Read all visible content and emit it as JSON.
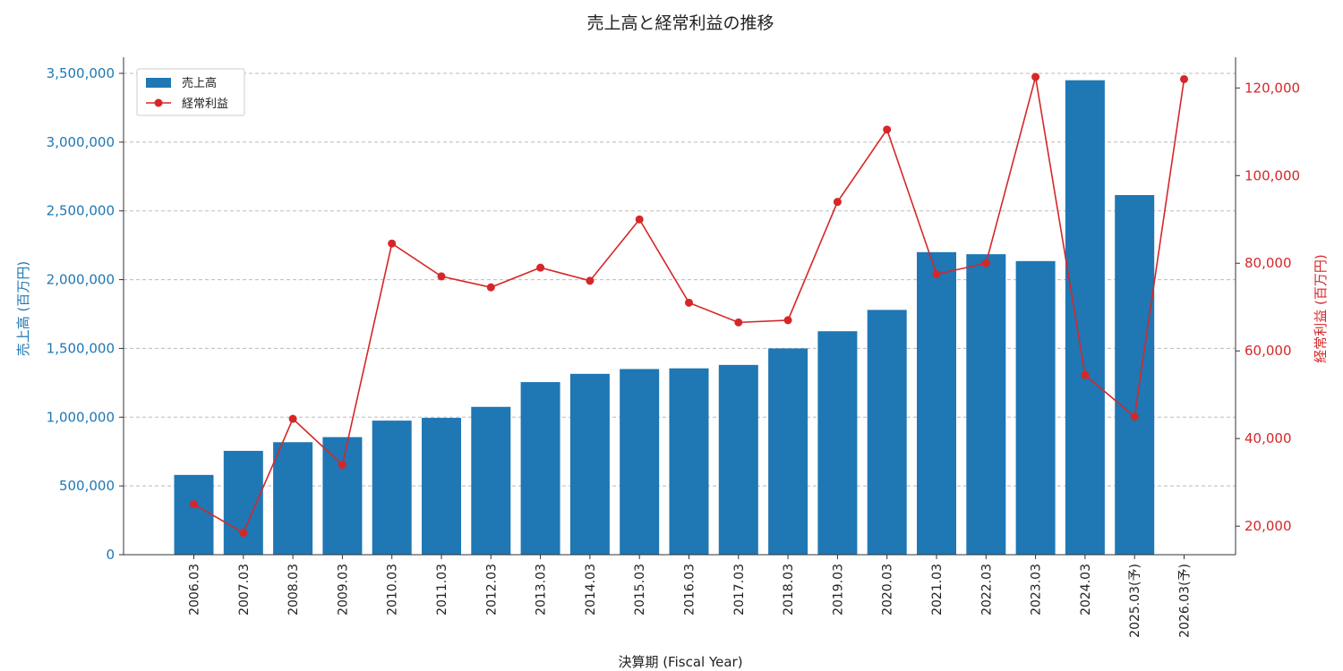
{
  "chart_data": {
    "type": "bar+line",
    "title": "売上高と経常利益の推移",
    "xlabel": "決算期 (Fiscal Year)",
    "ylabel_left": "売上高 (百万円)",
    "ylabel_right": "経常利益 (百万円)",
    "categories": [
      "2006.03",
      "2007.03",
      "2008.03",
      "2009.03",
      "2010.03",
      "2011.03",
      "2012.03",
      "2013.03",
      "2014.03",
      "2015.03",
      "2016.03",
      "2017.03",
      "2018.03",
      "2019.03",
      "2020.03",
      "2021.03",
      "2022.03",
      "2023.03",
      "2024.03",
      "2025.03(予)",
      "2026.03(予)"
    ],
    "series": [
      {
        "name": "売上高",
        "type": "bar",
        "axis": "left",
        "color": "#1f77b4",
        "values": [
          580000,
          755000,
          818000,
          855000,
          975000,
          995000,
          1075000,
          1255000,
          1315000,
          1350000,
          1355000,
          1380000,
          1500000,
          1625000,
          1780000,
          2200000,
          2185000,
          2135000,
          3450000,
          2615000,
          null
        ]
      },
      {
        "name": "経常利益",
        "type": "line",
        "axis": "right",
        "color": "#d62728",
        "values": [
          25000,
          18500,
          44500,
          34000,
          84500,
          77000,
          74500,
          79000,
          76000,
          90000,
          71000,
          66500,
          67000,
          94000,
          110500,
          77500,
          80000,
          122500,
          54500,
          45000,
          122000
        ]
      }
    ],
    "ylim_left": [
      0,
      3500000
    ],
    "yticks_left": [
      "0",
      "500,000",
      "1,000,000",
      "1,500,000",
      "2,000,000",
      "2,500,000",
      "3,000,000",
      "3,500,000"
    ],
    "yticks_left_values": [
      0,
      500000,
      1000000,
      1500000,
      2000000,
      2500000,
      3000000,
      3500000
    ],
    "ylim_right": [
      13500,
      127000
    ],
    "yticks_right": [
      "20,000",
      "40,000",
      "60,000",
      "80,000",
      "100,000",
      "120,000"
    ],
    "yticks_right_values": [
      20000,
      40000,
      60000,
      80000,
      100000,
      120000
    ],
    "grid": "horizontal dashed",
    "legend": "top-left"
  }
}
